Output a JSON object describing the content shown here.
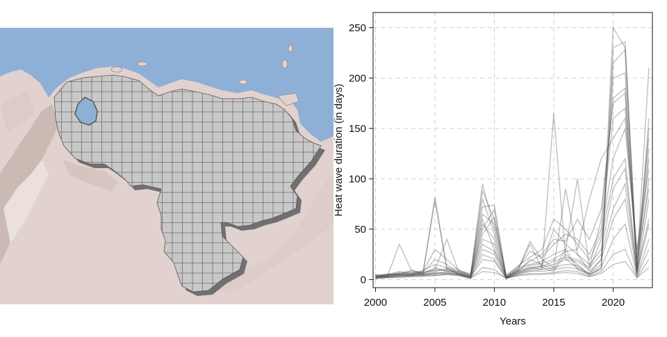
{
  "colors": {
    "sea": "#8fb0d6",
    "land": "#e2d2cf",
    "country_fill": "#c8c8c8",
    "grid_line": "#6f6f6f",
    "series_line": "#4a4a4a"
  },
  "map": {
    "type": "gridded-region-map"
  },
  "chart_data": {
    "type": "line",
    "title": "",
    "xlabel": "Years",
    "ylabel": "Heat wave duration (in days)",
    "xlim": [
      1999.8,
      2023.3
    ],
    "ylim": [
      -8,
      265
    ],
    "xticks": [
      2000,
      2005,
      2010,
      2015,
      2020
    ],
    "yticks": [
      0,
      50,
      100,
      150,
      200,
      250
    ],
    "grid": true,
    "x": [
      2000,
      2001,
      2002,
      2003,
      2004,
      2005,
      2006,
      2007,
      2008,
      2009,
      2010,
      2011,
      2012,
      2013,
      2014,
      2015,
      2016,
      2017,
      2018,
      2019,
      2020,
      2021,
      2022,
      2023
    ],
    "series": [
      {
        "values": [
          2,
          4,
          5,
          6,
          5,
          82,
          10,
          6,
          2,
          50,
          70,
          2,
          8,
          20,
          15,
          10,
          30,
          10,
          5,
          10,
          230,
          236,
          10,
          150
        ]
      },
      {
        "values": [
          4,
          5,
          6,
          4,
          8,
          78,
          12,
          5,
          3,
          88,
          60,
          2,
          10,
          35,
          12,
          8,
          25,
          15,
          4,
          12,
          215,
          228,
          8,
          160
        ]
      },
      {
        "values": [
          3,
          6,
          4,
          5,
          6,
          10,
          40,
          8,
          4,
          72,
          74,
          3,
          7,
          12,
          10,
          165,
          20,
          12,
          6,
          15,
          250,
          230,
          15,
          210
        ]
      },
      {
        "values": [
          5,
          4,
          7,
          8,
          6,
          12,
          8,
          5,
          2,
          60,
          30,
          4,
          10,
          38,
          20,
          12,
          90,
          25,
          8,
          20,
          200,
          205,
          12,
          120
        ]
      },
      {
        "values": [
          2,
          3,
          35,
          10,
          5,
          8,
          10,
          6,
          4,
          95,
          50,
          2,
          12,
          15,
          18,
          25,
          30,
          100,
          12,
          60,
          180,
          190,
          6,
          100
        ]
      },
      {
        "values": [
          3,
          4,
          5,
          6,
          7,
          9,
          11,
          8,
          5,
          80,
          45,
          3,
          9,
          14,
          16,
          20,
          28,
          30,
          80,
          120,
          140,
          160,
          20,
          90
        ]
      },
      {
        "values": [
          1,
          2,
          3,
          4,
          5,
          6,
          8,
          7,
          3,
          55,
          40,
          1,
          6,
          10,
          12,
          15,
          20,
          18,
          10,
          40,
          100,
          120,
          5,
          80
        ]
      },
      {
        "values": [
          4,
          5,
          6,
          5,
          7,
          20,
          15,
          6,
          2,
          40,
          35,
          2,
          8,
          12,
          14,
          50,
          35,
          25,
          15,
          30,
          90,
          110,
          8,
          60
        ]
      },
      {
        "values": [
          2,
          3,
          4,
          5,
          4,
          6,
          7,
          5,
          1,
          30,
          25,
          1,
          5,
          8,
          10,
          12,
          15,
          14,
          6,
          20,
          60,
          80,
          4,
          40
        ]
      },
      {
        "values": [
          3,
          3,
          4,
          4,
          5,
          5,
          6,
          5,
          2,
          20,
          18,
          2,
          6,
          9,
          8,
          10,
          12,
          11,
          5,
          12,
          40,
          55,
          3,
          30
        ]
      },
      {
        "values": [
          1,
          2,
          2,
          3,
          3,
          4,
          5,
          4,
          1,
          12,
          10,
          1,
          4,
          6,
          6,
          7,
          9,
          8,
          3,
          8,
          25,
          30,
          2,
          20
        ]
      },
      {
        "values": [
          2,
          2,
          3,
          3,
          4,
          4,
          5,
          4,
          2,
          8,
          7,
          2,
          4,
          5,
          5,
          6,
          7,
          6,
          3,
          6,
          15,
          18,
          2,
          12
        ]
      },
      {
        "values": [
          3,
          4,
          6,
          7,
          8,
          30,
          20,
          9,
          6,
          65,
          55,
          5,
          12,
          28,
          22,
          35,
          45,
          40,
          25,
          50,
          160,
          170,
          25,
          140
        ]
      },
      {
        "values": [
          2,
          5,
          8,
          6,
          9,
          15,
          12,
          10,
          4,
          45,
          62,
          3,
          14,
          22,
          30,
          60,
          50,
          35,
          20,
          45,
          120,
          150,
          30,
          110
        ]
      },
      {
        "values": [
          4,
          3,
          5,
          9,
          7,
          10,
          9,
          8,
          3,
          35,
          28,
          2,
          9,
          18,
          25,
          40,
          38,
          60,
          40,
          70,
          175,
          185,
          10,
          130
        ]
      },
      {
        "values": [
          1,
          3,
          4,
          4,
          5,
          7,
          6,
          6,
          2,
          25,
          20,
          1,
          7,
          11,
          13,
          18,
          22,
          20,
          12,
          25,
          70,
          95,
          6,
          55
        ]
      }
    ]
  }
}
